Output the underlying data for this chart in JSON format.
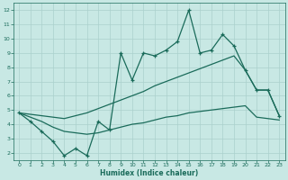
{
  "xlabel": "Humidex (Indice chaleur)",
  "background_color": "#c8e8e4",
  "grid_color": "#aad0cc",
  "line_color": "#1a6b5a",
  "xlim": [
    -0.5,
    23.5
  ],
  "ylim": [
    1.5,
    12.5
  ],
  "xticks": [
    0,
    1,
    2,
    3,
    4,
    5,
    6,
    7,
    8,
    9,
    10,
    11,
    12,
    13,
    14,
    15,
    16,
    17,
    18,
    19,
    20,
    21,
    22,
    23
  ],
  "yticks": [
    2,
    3,
    4,
    5,
    6,
    7,
    8,
    9,
    10,
    11,
    12
  ],
  "x": [
    0,
    1,
    2,
    3,
    4,
    5,
    6,
    7,
    8,
    9,
    10,
    11,
    12,
    13,
    14,
    15,
    16,
    17,
    18,
    19,
    20,
    21,
    22,
    23
  ],
  "y_jagged": [
    4.8,
    4.2,
    3.5,
    2.8,
    1.8,
    2.3,
    1.8,
    4.2,
    3.6,
    9.0,
    7.1,
    9.0,
    8.8,
    9.2,
    9.8,
    12.0,
    9.0,
    9.2,
    10.3,
    9.5,
    7.8,
    6.4,
    6.4,
    4.6
  ],
  "y_upper": [
    4.8,
    4.7,
    4.6,
    4.5,
    4.4,
    4.6,
    4.8,
    5.1,
    5.4,
    5.7,
    6.0,
    6.3,
    6.7,
    7.0,
    7.3,
    7.6,
    7.9,
    8.2,
    8.5,
    8.8,
    7.8,
    6.4,
    6.4,
    4.6
  ],
  "y_lower": [
    4.8,
    4.5,
    4.2,
    3.8,
    3.5,
    3.4,
    3.3,
    3.4,
    3.6,
    3.8,
    4.0,
    4.1,
    4.3,
    4.5,
    4.6,
    4.8,
    4.9,
    5.0,
    5.1,
    5.2,
    5.3,
    4.5,
    4.4,
    4.3
  ]
}
